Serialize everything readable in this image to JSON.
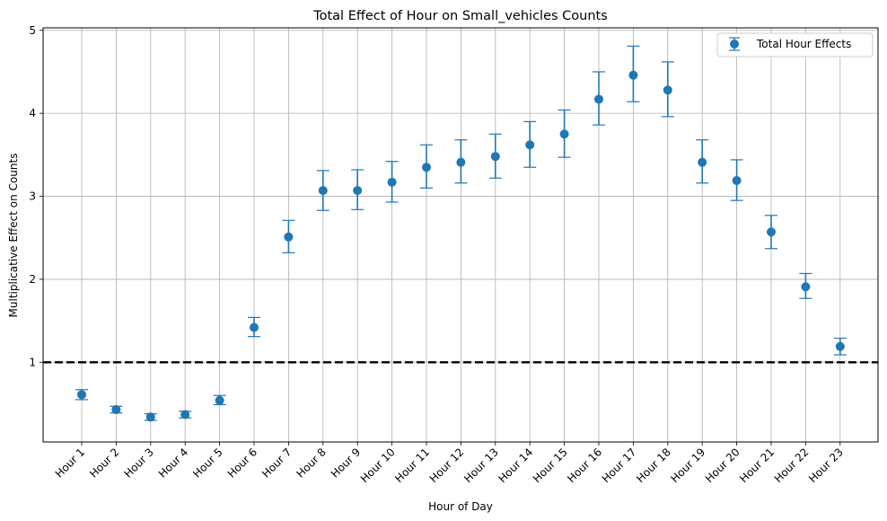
{
  "chart_data": {
    "type": "scatter",
    "title": "Total Effect of Hour on Small_vehicles Counts",
    "xlabel": "Hour of Day",
    "ylabel": "Multiplicative Effect on Counts",
    "ylim": [
      0.04,
      5.03
    ],
    "yticks": [
      1,
      2,
      3,
      4,
      5
    ],
    "grid": true,
    "legend_position": "top-right",
    "reference_line": {
      "y": 1,
      "style": "dashed",
      "color": "#000000"
    },
    "categories": [
      "Hour 1",
      "Hour 2",
      "Hour 3",
      "Hour 4",
      "Hour 5",
      "Hour 6",
      "Hour 7",
      "Hour 8",
      "Hour 9",
      "Hour 10",
      "Hour 11",
      "Hour 12",
      "Hour 13",
      "Hour 14",
      "Hour 15",
      "Hour 16",
      "Hour 17",
      "Hour 18",
      "Hour 19",
      "Hour 20",
      "Hour 21",
      "Hour 22",
      "Hour 23"
    ],
    "series": [
      {
        "name": "Total Hour Effects",
        "color": "#1f77b4",
        "values": [
          0.61,
          0.43,
          0.34,
          0.37,
          0.54,
          1.42,
          2.51,
          3.07,
          3.07,
          3.17,
          3.35,
          3.41,
          3.48,
          3.62,
          3.75,
          4.17,
          4.46,
          4.28,
          3.41,
          3.19,
          2.57,
          1.91,
          1.19
        ],
        "lower": [
          0.55,
          0.39,
          0.3,
          0.33,
          0.49,
          1.31,
          2.32,
          2.83,
          2.84,
          2.93,
          3.1,
          3.16,
          3.22,
          3.35,
          3.47,
          3.86,
          4.14,
          3.96,
          3.16,
          2.95,
          2.37,
          1.77,
          1.09
        ],
        "upper": [
          0.67,
          0.47,
          0.38,
          0.41,
          0.6,
          1.54,
          2.71,
          3.31,
          3.32,
          3.42,
          3.62,
          3.68,
          3.75,
          3.9,
          4.04,
          4.5,
          4.81,
          4.62,
          3.68,
          3.44,
          2.77,
          2.07,
          1.29
        ]
      }
    ]
  }
}
